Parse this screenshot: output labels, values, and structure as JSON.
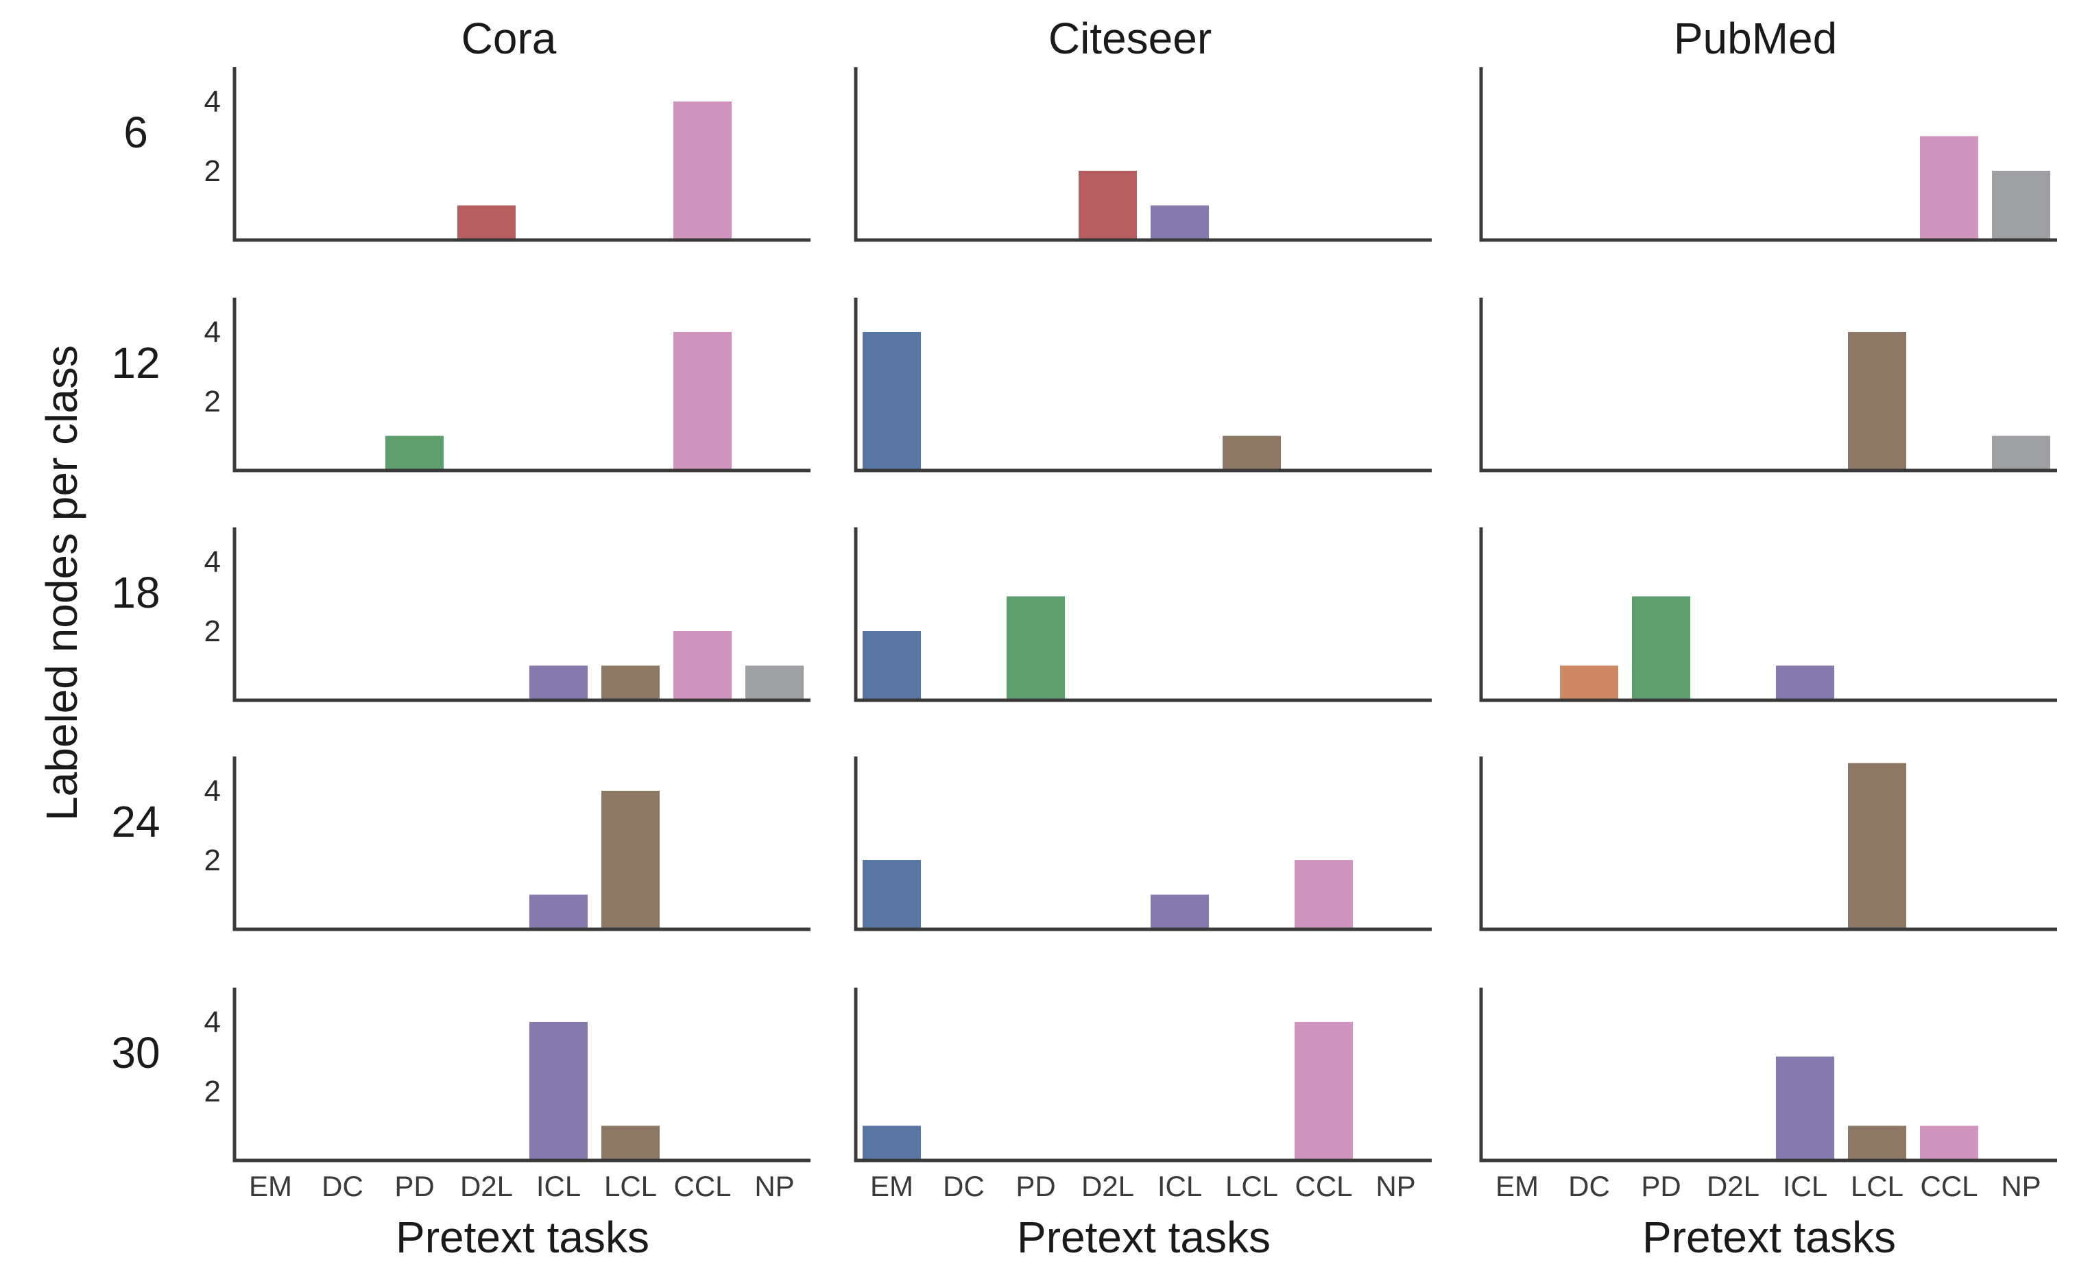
{
  "chart_data": {
    "type": "bar",
    "title": "",
    "columns": [
      "Cora",
      "Citeseer",
      "PubMed"
    ],
    "rows": [
      "6",
      "12",
      "18",
      "24",
      "30"
    ],
    "categories": [
      "EM",
      "DC",
      "PD",
      "D2L",
      "ICL",
      "LCL",
      "CCL",
      "NP"
    ],
    "xlabel": "Pretext tasks",
    "ylabel": "Labeled nodes per class",
    "yticks": [
      2,
      4
    ],
    "ylim": [
      0,
      5
    ],
    "colors": {
      "EM": "#5875a4",
      "DC": "#cc8963",
      "PD": "#5f9e6e",
      "D2L": "#b55d60",
      "ICL": "#857aab",
      "LCL": "#8d7866",
      "CCL": "#d095bf",
      "NP": "#9d9fa3"
    },
    "panels": [
      [
        {
          "values": [
            0,
            0,
            0,
            1,
            0,
            0,
            4,
            0
          ]
        },
        {
          "values": [
            0,
            0,
            0,
            2,
            1,
            0,
            0,
            0
          ]
        },
        {
          "values": [
            0,
            0,
            0,
            0,
            0,
            0,
            3,
            2
          ]
        }
      ],
      [
        {
          "values": [
            0,
            0,
            1,
            0,
            0,
            0,
            4,
            0
          ]
        },
        {
          "values": [
            4,
            0,
            0,
            0,
            0,
            1,
            0,
            0
          ]
        },
        {
          "values": [
            0,
            0,
            0,
            0,
            0,
            4,
            0,
            1
          ]
        }
      ],
      [
        {
          "values": [
            0,
            0,
            0,
            0,
            1,
            1,
            2,
            1
          ]
        },
        {
          "values": [
            2,
            0,
            3,
            0,
            0,
            0,
            0,
            0
          ]
        },
        {
          "values": [
            0,
            1,
            3,
            0,
            1,
            0,
            0,
            0
          ]
        }
      ],
      [
        {
          "values": [
            0,
            0,
            0,
            0,
            1,
            4,
            0,
            0
          ]
        },
        {
          "values": [
            2,
            0,
            0,
            0,
            1,
            0,
            2,
            0
          ]
        },
        {
          "values": [
            0,
            0,
            0,
            0,
            0,
            4.8,
            0,
            0
          ]
        }
      ],
      [
        {
          "values": [
            0,
            0,
            0,
            0,
            4,
            1,
            0,
            0
          ]
        },
        {
          "values": [
            1,
            0,
            0,
            0,
            0,
            0,
            4,
            0
          ]
        },
        {
          "values": [
            0,
            0,
            0,
            0,
            3,
            1,
            1,
            0
          ]
        }
      ]
    ]
  }
}
